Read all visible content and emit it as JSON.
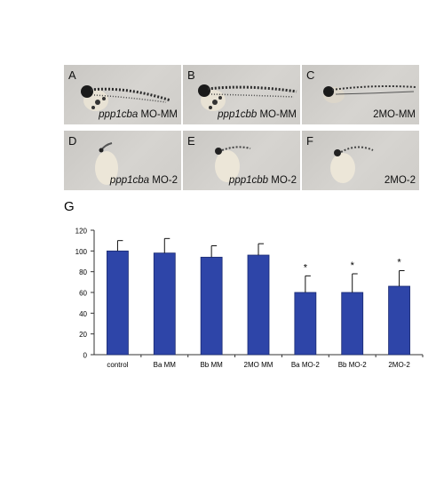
{
  "panels": [
    {
      "letter": "A",
      "gene": "ppp1cba",
      "treatment": " MO-MM"
    },
    {
      "letter": "B",
      "gene": "ppp1cbb",
      "treatment": " MO-MM"
    },
    {
      "letter": "C",
      "gene": "",
      "treatment": "2MO-MM"
    },
    {
      "letter": "D",
      "gene": "ppp1cba",
      "treatment": " MO-2"
    },
    {
      "letter": "E",
      "gene": "ppp1cbb",
      "treatment": " MO-2"
    },
    {
      "letter": "F",
      "gene": "",
      "treatment": "2MO-2"
    }
  ],
  "chart_label": "G",
  "chart_data": {
    "type": "bar",
    "categories": [
      "control",
      "Ba MM",
      "Bb MM",
      "2MO MM",
      "Ba MO-2",
      "Bb MO-2",
      "2MO-2"
    ],
    "values": [
      100,
      98,
      94,
      96,
      60,
      60,
      66
    ],
    "errors": [
      10,
      14,
      11,
      11,
      16,
      18,
      15
    ],
    "significance": [
      "",
      "",
      "",
      "",
      "*",
      "*",
      "*"
    ],
    "yticks": [
      0,
      20,
      40,
      60,
      80,
      100,
      120
    ],
    "ylim": [
      0,
      120
    ],
    "title": "",
    "xlabel": "",
    "ylabel": "",
    "bar_color": "#2e45a8",
    "grid": false
  }
}
